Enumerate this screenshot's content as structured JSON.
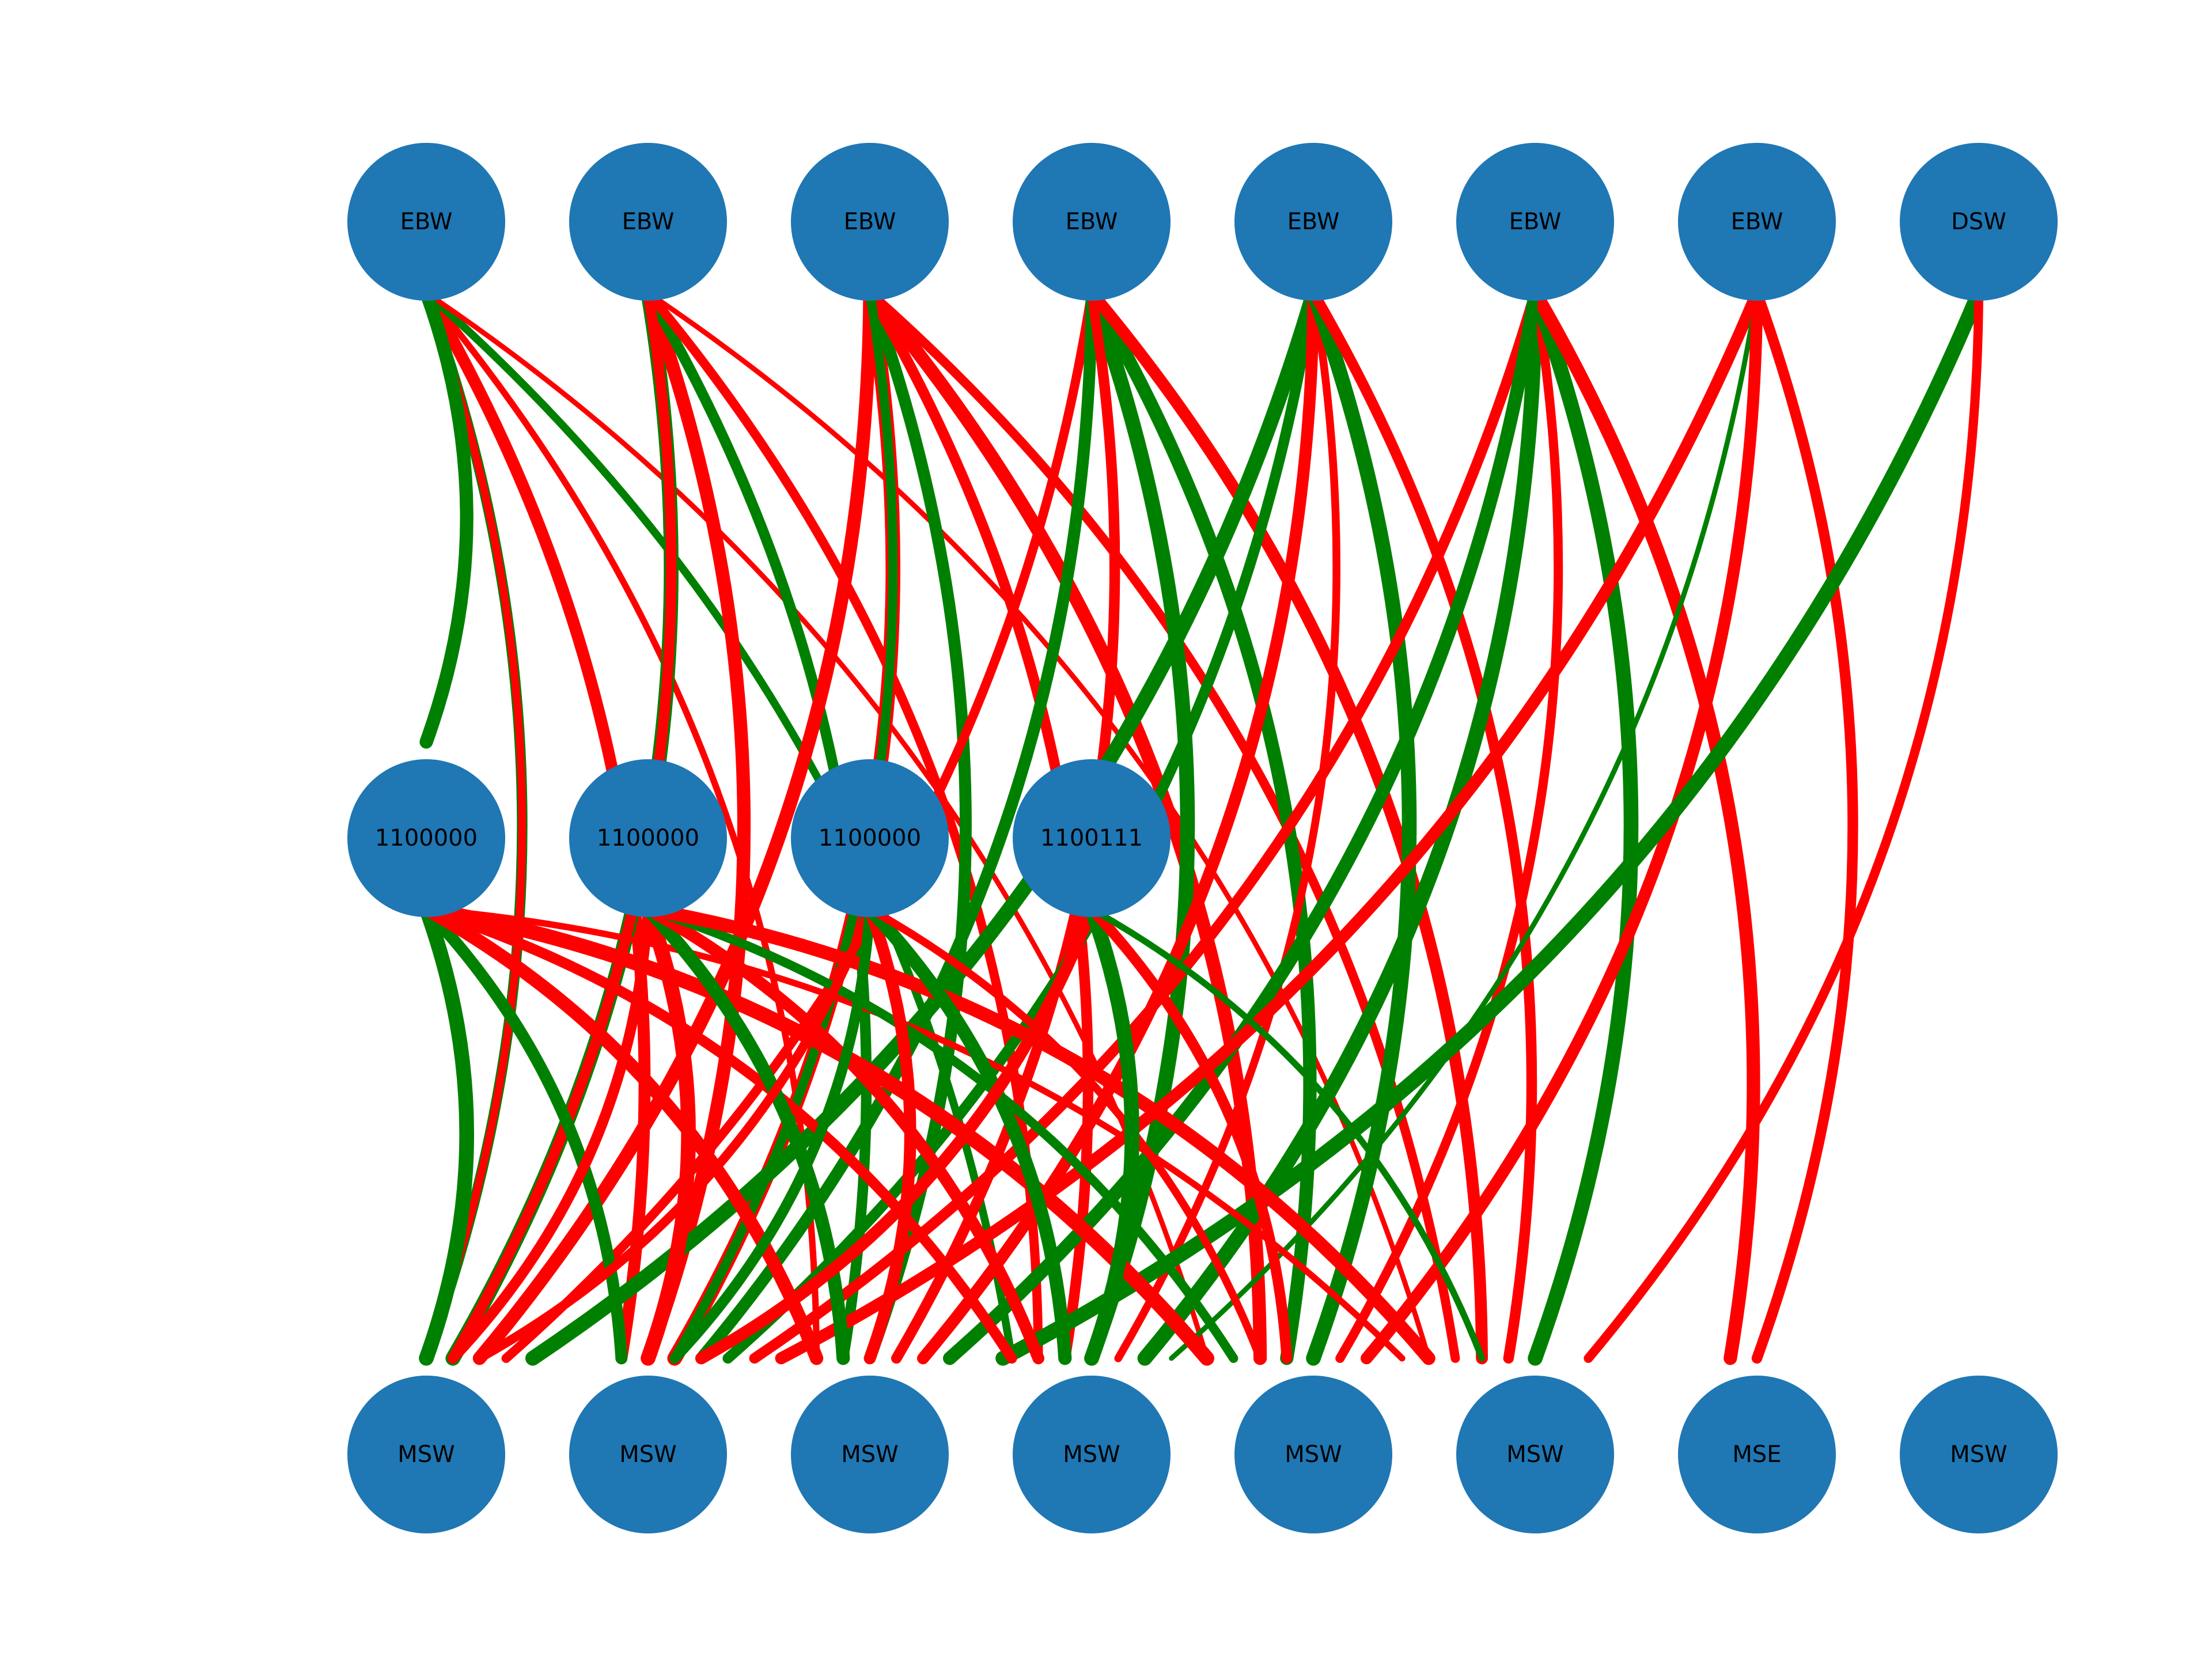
{
  "colors": {
    "node": "#1f77b4",
    "positive_edge": "#008000",
    "negative_edge": "#ff0000",
    "label": "#000000"
  },
  "nodes": [
    {
      "id": "t0",
      "label": "EBW"
    },
    {
      "id": "t1",
      "label": "EBW"
    },
    {
      "id": "t2",
      "label": "EBW"
    },
    {
      "id": "t3",
      "label": "EBW"
    },
    {
      "id": "t4",
      "label": "EBW"
    },
    {
      "id": "t5",
      "label": "EBW"
    },
    {
      "id": "t6",
      "label": "EBW"
    },
    {
      "id": "t7",
      "label": "DSW"
    },
    {
      "id": "m0",
      "label": "1100000"
    },
    {
      "id": "m1",
      "label": "1100000"
    },
    {
      "id": "m2",
      "label": "1100000"
    },
    {
      "id": "m3",
      "label": "1100111"
    },
    {
      "id": "b0",
      "label": "MSW"
    },
    {
      "id": "b1",
      "label": "MSW"
    },
    {
      "id": "b2",
      "label": "MSW"
    },
    {
      "id": "b3",
      "label": "MSW"
    },
    {
      "id": "b4",
      "label": "MSW"
    },
    {
      "id": "b5",
      "label": "MSW"
    },
    {
      "id": "b6",
      "label": "MSE"
    },
    {
      "id": "b7",
      "label": "MSW"
    }
  ],
  "edges": [
    {
      "from": "t0",
      "to": "b0",
      "sign": "positive",
      "weight": 6
    },
    {
      "from": "t0",
      "to": "b0",
      "sign": "negative",
      "weight": 4
    },
    {
      "from": "t0",
      "to": "b1",
      "sign": "negative",
      "weight": 7
    },
    {
      "from": "t0",
      "to": "b2",
      "sign": "negative",
      "weight": 3
    },
    {
      "from": "t0",
      "to": "b3",
      "sign": "positive",
      "weight": 4
    },
    {
      "from": "t0",
      "to": "b4",
      "sign": "negative",
      "weight": 2
    },
    {
      "from": "t0",
      "to": "m0",
      "sign": "positive",
      "weight": 8
    },
    {
      "from": "t1",
      "to": "b0",
      "sign": "positive",
      "weight": 9
    },
    {
      "from": "t1",
      "to": "b1",
      "sign": "negative",
      "weight": 8
    },
    {
      "from": "t1",
      "to": "b2",
      "sign": "positive",
      "weight": 6
    },
    {
      "from": "t1",
      "to": "b3",
      "sign": "negative",
      "weight": 5
    },
    {
      "from": "t1",
      "to": "b5",
      "sign": "negative",
      "weight": 2
    },
    {
      "from": "t1",
      "to": "b0",
      "sign": "negative",
      "weight": 6
    },
    {
      "from": "t2",
      "to": "b0",
      "sign": "negative",
      "weight": 8
    },
    {
      "from": "t2",
      "to": "b1",
      "sign": "negative",
      "weight": 9
    },
    {
      "from": "t2",
      "to": "b2",
      "sign": "positive",
      "weight": 7
    },
    {
      "from": "t2",
      "to": "b3",
      "sign": "negative",
      "weight": 6
    },
    {
      "from": "t2",
      "to": "b4",
      "sign": "negative",
      "weight": 8
    },
    {
      "from": "t2",
      "to": "b5",
      "sign": "negative",
      "weight": 5
    },
    {
      "from": "t2",
      "to": "b1",
      "sign": "positive",
      "weight": 5
    },
    {
      "from": "t3",
      "to": "b0",
      "sign": "negative",
      "weight": 5
    },
    {
      "from": "t3",
      "to": "b1",
      "sign": "positive",
      "weight": 7
    },
    {
      "from": "t3",
      "to": "b2",
      "sign": "negative",
      "weight": 6
    },
    {
      "from": "t3",
      "to": "b3",
      "sign": "positive",
      "weight": 9
    },
    {
      "from": "t3",
      "to": "b4",
      "sign": "positive",
      "weight": 8
    },
    {
      "from": "t3",
      "to": "b5",
      "sign": "negative",
      "weight": 7
    },
    {
      "from": "t3",
      "to": "b2",
      "sign": "negative",
      "weight": 5
    },
    {
      "from": "t4",
      "to": "b0",
      "sign": "positive",
      "weight": 9
    },
    {
      "from": "t4",
      "to": "b1",
      "sign": "positive",
      "weight": 6
    },
    {
      "from": "t4",
      "to": "b2",
      "sign": "negative",
      "weight": 7
    },
    {
      "from": "t4",
      "to": "b3",
      "sign": "negative",
      "weight": 4
    },
    {
      "from": "t4",
      "to": "b4",
      "sign": "positive",
      "weight": 9
    },
    {
      "from": "t4",
      "to": "b5",
      "sign": "negative",
      "weight": 6
    },
    {
      "from": "t5",
      "to": "b1",
      "sign": "negative",
      "weight": 6
    },
    {
      "from": "t5",
      "to": "b2",
      "sign": "positive",
      "weight": 8
    },
    {
      "from": "t5",
      "to": "b3",
      "sign": "positive",
      "weight": 9
    },
    {
      "from": "t5",
      "to": "b4",
      "sign": "negative",
      "weight": 5
    },
    {
      "from": "t5",
      "to": "b5",
      "sign": "positive",
      "weight": 9
    },
    {
      "from": "t5",
      "to": "b6",
      "sign": "negative",
      "weight": 8
    },
    {
      "from": "t5",
      "to": "b3",
      "sign": "positive",
      "weight": 2
    },
    {
      "from": "t6",
      "to": "b1",
      "sign": "negative",
      "weight": 7
    },
    {
      "from": "t6",
      "to": "b3",
      "sign": "positive",
      "weight": 2
    },
    {
      "from": "t6",
      "to": "b4",
      "sign": "negative",
      "weight": 7
    },
    {
      "from": "t6",
      "to": "b6",
      "sign": "negative",
      "weight": 6
    },
    {
      "from": "t7",
      "to": "b2",
      "sign": "positive",
      "weight": 9
    },
    {
      "from": "t7",
      "to": "b5",
      "sign": "negative",
      "weight": 5
    },
    {
      "from": "m0",
      "to": "b0",
      "sign": "positive",
      "weight": 9
    },
    {
      "from": "m0",
      "to": "b1",
      "sign": "positive",
      "weight": 7
    },
    {
      "from": "m0",
      "to": "b2",
      "sign": "negative",
      "weight": 8
    },
    {
      "from": "m0",
      "to": "b3",
      "sign": "negative",
      "weight": 6
    },
    {
      "from": "m0",
      "to": "b4",
      "sign": "negative",
      "weight": 9
    },
    {
      "from": "m0",
      "to": "b5",
      "sign": "negative",
      "weight": 3
    },
    {
      "from": "m1",
      "to": "b0",
      "sign": "negative",
      "weight": 6
    },
    {
      "from": "m1",
      "to": "b1",
      "sign": "negative",
      "weight": 9
    },
    {
      "from": "m1",
      "to": "b2",
      "sign": "positive",
      "weight": 8
    },
    {
      "from": "m1",
      "to": "b3",
      "sign": "negative",
      "weight": 7
    },
    {
      "from": "m1",
      "to": "b4",
      "sign": "positive",
      "weight": 5
    },
    {
      "from": "m1",
      "to": "b5",
      "sign": "negative",
      "weight": 8
    },
    {
      "from": "m2",
      "to": "b0",
      "sign": "negative",
      "weight": 5
    },
    {
      "from": "m2",
      "to": "b1",
      "sign": "positive",
      "weight": 6
    },
    {
      "from": "m2",
      "to": "b2",
      "sign": "negative",
      "weight": 7
    },
    {
      "from": "m2",
      "to": "b3",
      "sign": "positive",
      "weight": 8
    },
    {
      "from": "m2",
      "to": "b4",
      "sign": "negative",
      "weight": 4
    },
    {
      "from": "m3",
      "to": "b1",
      "sign": "negative",
      "weight": 7
    },
    {
      "from": "m3",
      "to": "b3",
      "sign": "positive",
      "weight": 9
    },
    {
      "from": "m3",
      "to": "b4",
      "sign": "negative",
      "weight": 6
    },
    {
      "from": "m3",
      "to": "b5",
      "sign": "positive",
      "weight": 3
    }
  ]
}
